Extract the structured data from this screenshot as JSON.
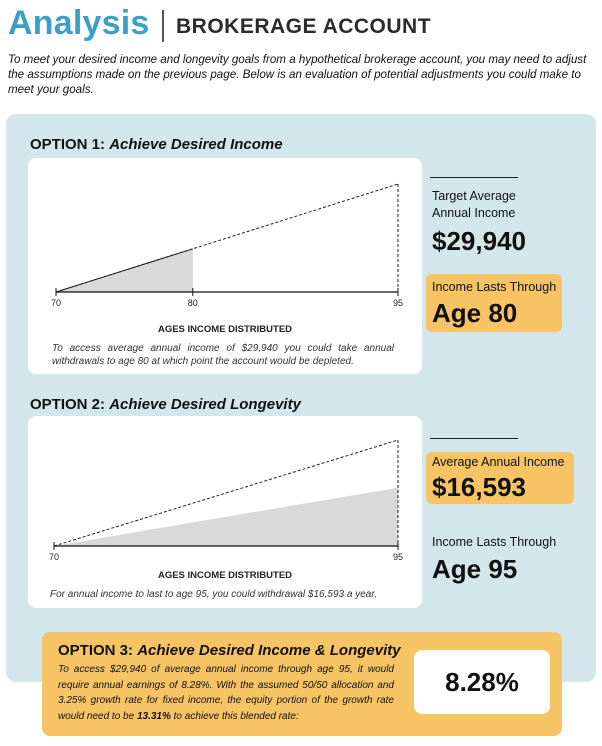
{
  "header": {
    "title": "Analysis",
    "subtitle": "BROKERAGE ACCOUNT",
    "intro": "To meet your desired income and longevity goals from a hypothetical brokerage account, you may need to adjust the assumptions made on the previous page. Below is an evaluation of potential adjustments you could make to meet your goals."
  },
  "option1": {
    "label": "OPTION 1:",
    "name": "Achieve Desired Income",
    "axis_title": "AGES INCOME DISTRIBUTED",
    "note": "To access average annual income of $29,940 you could take annual withdrawals to age 80 at which point the account would be depleted.",
    "target_label": "Target Average Annual Income",
    "target_value": "$29,940",
    "lasts_label": "Income Lasts Through",
    "lasts_value": "Age 80"
  },
  "option2": {
    "label": "OPTION 2:",
    "name": "Achieve Desired Longevity",
    "axis_title": "AGES INCOME DISTRIBUTED",
    "note": "For annual income to last to age 95, you could withdrawal $16,593 a year.",
    "avg_label": "Average Annual Income",
    "avg_value": "$16,593",
    "lasts_label": "Income Lasts Through",
    "lasts_value": "Age 95"
  },
  "option3": {
    "label": "OPTION 3:",
    "name": "Achieve Desired Income & Longevity",
    "body_pre": "To access $29,940 of average annual income through age 95, it would require annual earnings of 8.28%. With the assumed 50/50 allocation and 3.25% growth rate for fixed income, the equity portion of the growth rate would need to be ",
    "body_bold": "13.31%",
    "body_post": " to achieve this blended rate:",
    "rate": "8.28%"
  },
  "chart_data": [
    {
      "type": "area",
      "x_ticks": [
        "70",
        "80",
        "95"
      ],
      "xlabel": "AGES INCOME DISTRIBUTED",
      "xlim": [
        70,
        95
      ],
      "desired_line": {
        "x": [
          70,
          95
        ],
        "y": [
          0,
          1
        ]
      },
      "filled_area": {
        "x": [
          70,
          80
        ],
        "y": [
          0,
          0.4
        ]
      },
      "depletion_age": 80
    },
    {
      "type": "area",
      "x_ticks": [
        "70",
        "95"
      ],
      "xlabel": "AGES INCOME DISTRIBUTED",
      "xlim": [
        70,
        95
      ],
      "desired_line": {
        "x": [
          70,
          95
        ],
        "y": [
          0,
          1
        ]
      },
      "filled_area": {
        "x": [
          70,
          95
        ],
        "y": [
          0,
          0.55
        ]
      }
    }
  ]
}
